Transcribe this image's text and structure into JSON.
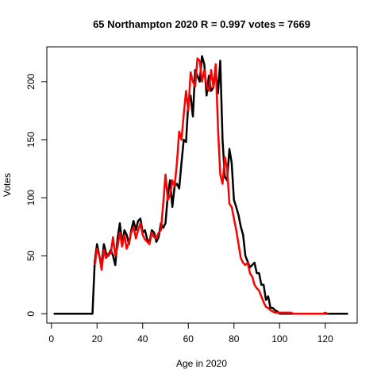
{
  "chart_data": {
    "type": "line",
    "title": "65 Northampton 2020 R = 0.997 votes = 7669",
    "xlabel": "Age in 2020",
    "ylabel": "Votes",
    "xlim": [
      -2,
      134
    ],
    "ylim": [
      -8,
      230
    ],
    "xticks": [
      0,
      20,
      40,
      60,
      80,
      100,
      120
    ],
    "yticks": [
      0,
      50,
      100,
      150,
      200
    ],
    "grid": false,
    "legend": "none",
    "series": [
      {
        "color": "#000000",
        "x": [
          1,
          2,
          3,
          4,
          5,
          6,
          7,
          8,
          9,
          10,
          11,
          12,
          13,
          14,
          15,
          16,
          17,
          18,
          19,
          20,
          21,
          22,
          23,
          24,
          25,
          26,
          27,
          28,
          29,
          30,
          31,
          32,
          33,
          34,
          35,
          36,
          37,
          38,
          39,
          40,
          41,
          42,
          43,
          44,
          45,
          46,
          47,
          48,
          49,
          50,
          51,
          52,
          53,
          54,
          55,
          56,
          57,
          58,
          59,
          60,
          61,
          62,
          63,
          64,
          65,
          66,
          67,
          68,
          69,
          70,
          71,
          72,
          73,
          74,
          75,
          76,
          77,
          78,
          79,
          80,
          81,
          82,
          83,
          84,
          85,
          86,
          87,
          88,
          89,
          90,
          91,
          92,
          93,
          94,
          95,
          96,
          97,
          98,
          99,
          100,
          101,
          102,
          103,
          104,
          105,
          106,
          107,
          108,
          109,
          110,
          111,
          112,
          113,
          114,
          115,
          116,
          117,
          118,
          119,
          120,
          121,
          122,
          123,
          124,
          125,
          126,
          127,
          128,
          129,
          130
        ],
        "values": [
          0,
          0,
          0,
          0,
          0,
          0,
          0,
          0,
          0,
          0,
          0,
          0,
          0,
          0,
          0,
          0,
          0,
          0,
          45,
          60,
          50,
          42,
          60,
          52,
          50,
          55,
          50,
          42,
          65,
          78,
          60,
          72,
          68,
          60,
          72,
          80,
          72,
          80,
          82,
          70,
          72,
          64,
          62,
          72,
          70,
          62,
          66,
          78,
          74,
          78,
          102,
          115,
          92,
          110,
          112,
          108,
          130,
          150,
          148,
          182,
          188,
          170,
          210,
          205,
          200,
          222,
          215,
          188,
          205,
          192,
          195,
          210,
          190,
          218,
          150,
          118,
          115,
          142,
          130,
          98,
          92,
          85,
          75,
          68,
          50,
          45,
          40,
          42,
          44,
          35,
          35,
          25,
          25,
          12,
          15,
          5,
          5,
          3,
          2,
          0,
          0,
          0,
          0,
          0,
          0,
          0,
          0,
          0,
          0,
          0,
          0,
          0,
          0,
          0,
          0,
          0,
          0,
          0,
          0,
          0,
          0,
          0,
          0,
          0,
          0,
          0,
          0,
          0,
          0,
          0
        ]
      },
      {
        "color": "#ff0000",
        "x": [
          19,
          20,
          21,
          22,
          23,
          24,
          25,
          26,
          27,
          28,
          29,
          30,
          31,
          32,
          33,
          34,
          35,
          36,
          37,
          38,
          39,
          40,
          41,
          42,
          43,
          44,
          45,
          46,
          47,
          48,
          49,
          50,
          51,
          52,
          53,
          54,
          55,
          56,
          57,
          58,
          59,
          60,
          61,
          62,
          63,
          64,
          65,
          66,
          67,
          68,
          69,
          70,
          71,
          72,
          73,
          74,
          75,
          76,
          77,
          78,
          79,
          80,
          81,
          82,
          83,
          84,
          85,
          86,
          87,
          88,
          89,
          90,
          91,
          92,
          93,
          94,
          95,
          96,
          97,
          98,
          99,
          100,
          101,
          102,
          103,
          104,
          105,
          106,
          107,
          108,
          109,
          110,
          111,
          112,
          113,
          114,
          115,
          116,
          117,
          118,
          119,
          120,
          121
        ],
        "values": [
          42,
          56,
          50,
          38,
          55,
          48,
          52,
          52,
          66,
          50,
          58,
          70,
          58,
          68,
          56,
          62,
          70,
          75,
          65,
          72,
          78,
          68,
          64,
          62,
          60,
          70,
          66,
          65,
          70,
          72,
          95,
          120,
          98,
          102,
          115,
          110,
          130,
          157,
          150,
          172,
          192,
          175,
          208,
          200,
          196,
          220,
          218,
          200,
          210,
          196,
          192,
          210,
          195,
          215,
          160,
          120,
          112,
          135,
          125,
          95,
          92,
          82,
          72,
          60,
          48,
          44,
          42,
          44,
          35,
          32,
          25,
          22,
          20,
          15,
          10,
          6,
          5,
          3,
          2,
          1,
          1,
          1,
          1,
          1,
          1,
          1,
          1,
          0,
          0,
          0,
          0,
          0,
          0,
          0,
          0,
          0,
          0,
          0,
          0,
          0,
          0,
          1,
          0
        ]
      }
    ]
  }
}
